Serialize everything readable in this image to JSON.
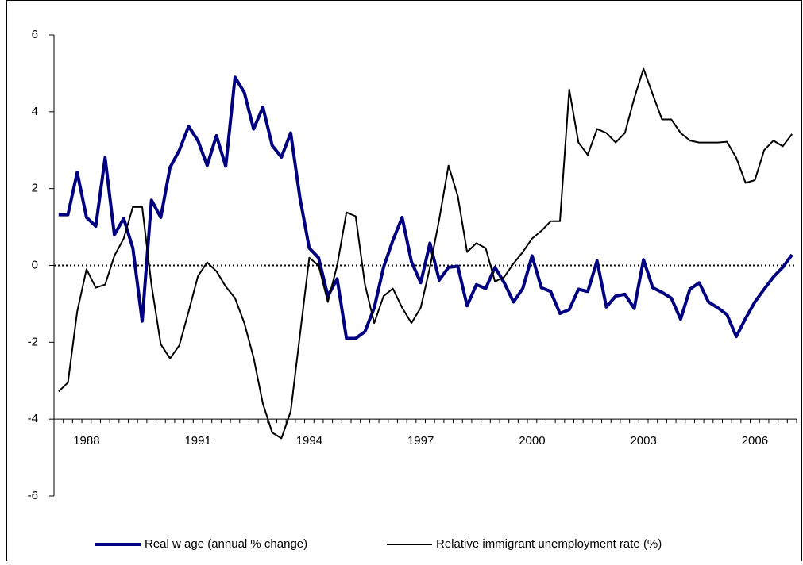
{
  "chart_data": {
    "type": "line",
    "categories": [
      null,
      null,
      null,
      "1988",
      null,
      null,
      null,
      null,
      null,
      null,
      null,
      null,
      null,
      null,
      null,
      "1991",
      null,
      null,
      null,
      null,
      null,
      null,
      null,
      null,
      null,
      null,
      null,
      "1994",
      null,
      null,
      null,
      null,
      null,
      null,
      null,
      null,
      null,
      null,
      null,
      "1997",
      null,
      null,
      null,
      null,
      null,
      null,
      null,
      null,
      null,
      null,
      null,
      "2000",
      null,
      null,
      null,
      null,
      null,
      null,
      null,
      null,
      null,
      null,
      null,
      "2003",
      null,
      null,
      null,
      null,
      null,
      null,
      null,
      null,
      null,
      null,
      null,
      "2006",
      null,
      null,
      null,
      null
    ],
    "series": [
      {
        "name": "Real w age (annual % change)",
        "color": "#000080",
        "width": 4,
        "values": [
          1.32,
          1.32,
          2.42,
          1.25,
          1.02,
          2.8,
          0.8,
          1.22,
          0.45,
          -1.45,
          1.7,
          1.25,
          2.55,
          3.0,
          3.62,
          3.25,
          2.6,
          3.38,
          2.58,
          4.9,
          4.5,
          3.55,
          4.12,
          3.12,
          2.82,
          3.45,
          1.75,
          0.45,
          0.2,
          -0.8,
          -0.35,
          -1.9,
          -1.9,
          -1.72,
          -1.1,
          -0.05,
          0.65,
          1.25,
          0.1,
          -0.45,
          0.58,
          -0.38,
          -0.05,
          -0.02,
          -1.05,
          -0.5,
          -0.6,
          -0.05,
          -0.45,
          -0.95,
          -0.6,
          0.25,
          -0.58,
          -0.68,
          -1.25,
          -1.15,
          -0.62,
          -0.68,
          0.12,
          -1.08,
          -0.8,
          -0.75,
          -1.12,
          0.15,
          -0.58,
          -0.7,
          -0.85,
          -1.4,
          -0.62,
          -0.45,
          -0.95,
          -1.1,
          -1.28,
          -1.85,
          -1.38,
          -0.95,
          -0.62,
          -0.3,
          -0.05,
          0.28
        ]
      },
      {
        "name": "Relative immigrant unemployment rate (%)",
        "color": "#000000",
        "width": 2,
        "values": [
          -3.28,
          -3.05,
          -1.2,
          -0.1,
          -0.58,
          -0.5,
          0.25,
          0.7,
          1.52,
          1.52,
          -0.5,
          -2.05,
          -2.42,
          -2.08,
          -1.2,
          -0.28,
          0.08,
          -0.15,
          -0.55,
          -0.85,
          -1.5,
          -2.4,
          -3.6,
          -4.35,
          -4.5,
          -3.8,
          -1.8,
          0.2,
          0.0,
          -0.95,
          0.0,
          1.38,
          1.28,
          -0.5,
          -1.5,
          -0.8,
          -0.6,
          -1.1,
          -1.5,
          -1.1,
          -0.05,
          1.2,
          2.6,
          1.8,
          0.35,
          0.58,
          0.45,
          -0.42,
          -0.3,
          0.05,
          0.35,
          0.7,
          0.9,
          1.15,
          1.15,
          4.58,
          3.2,
          2.88,
          3.55,
          3.45,
          3.2,
          3.45,
          4.35,
          5.12,
          4.45,
          3.8,
          3.8,
          3.45,
          3.25,
          3.2,
          3.2,
          3.2,
          3.22,
          2.8,
          2.15,
          2.22,
          3.0,
          3.25,
          3.1,
          3.42
        ]
      }
    ],
    "ylim": [
      -6,
      6
    ],
    "yticks": [
      -6,
      -4,
      -2,
      0,
      2,
      4,
      6
    ],
    "x_axis_crossing": -4,
    "zero_line": true,
    "legend": "bottom"
  }
}
